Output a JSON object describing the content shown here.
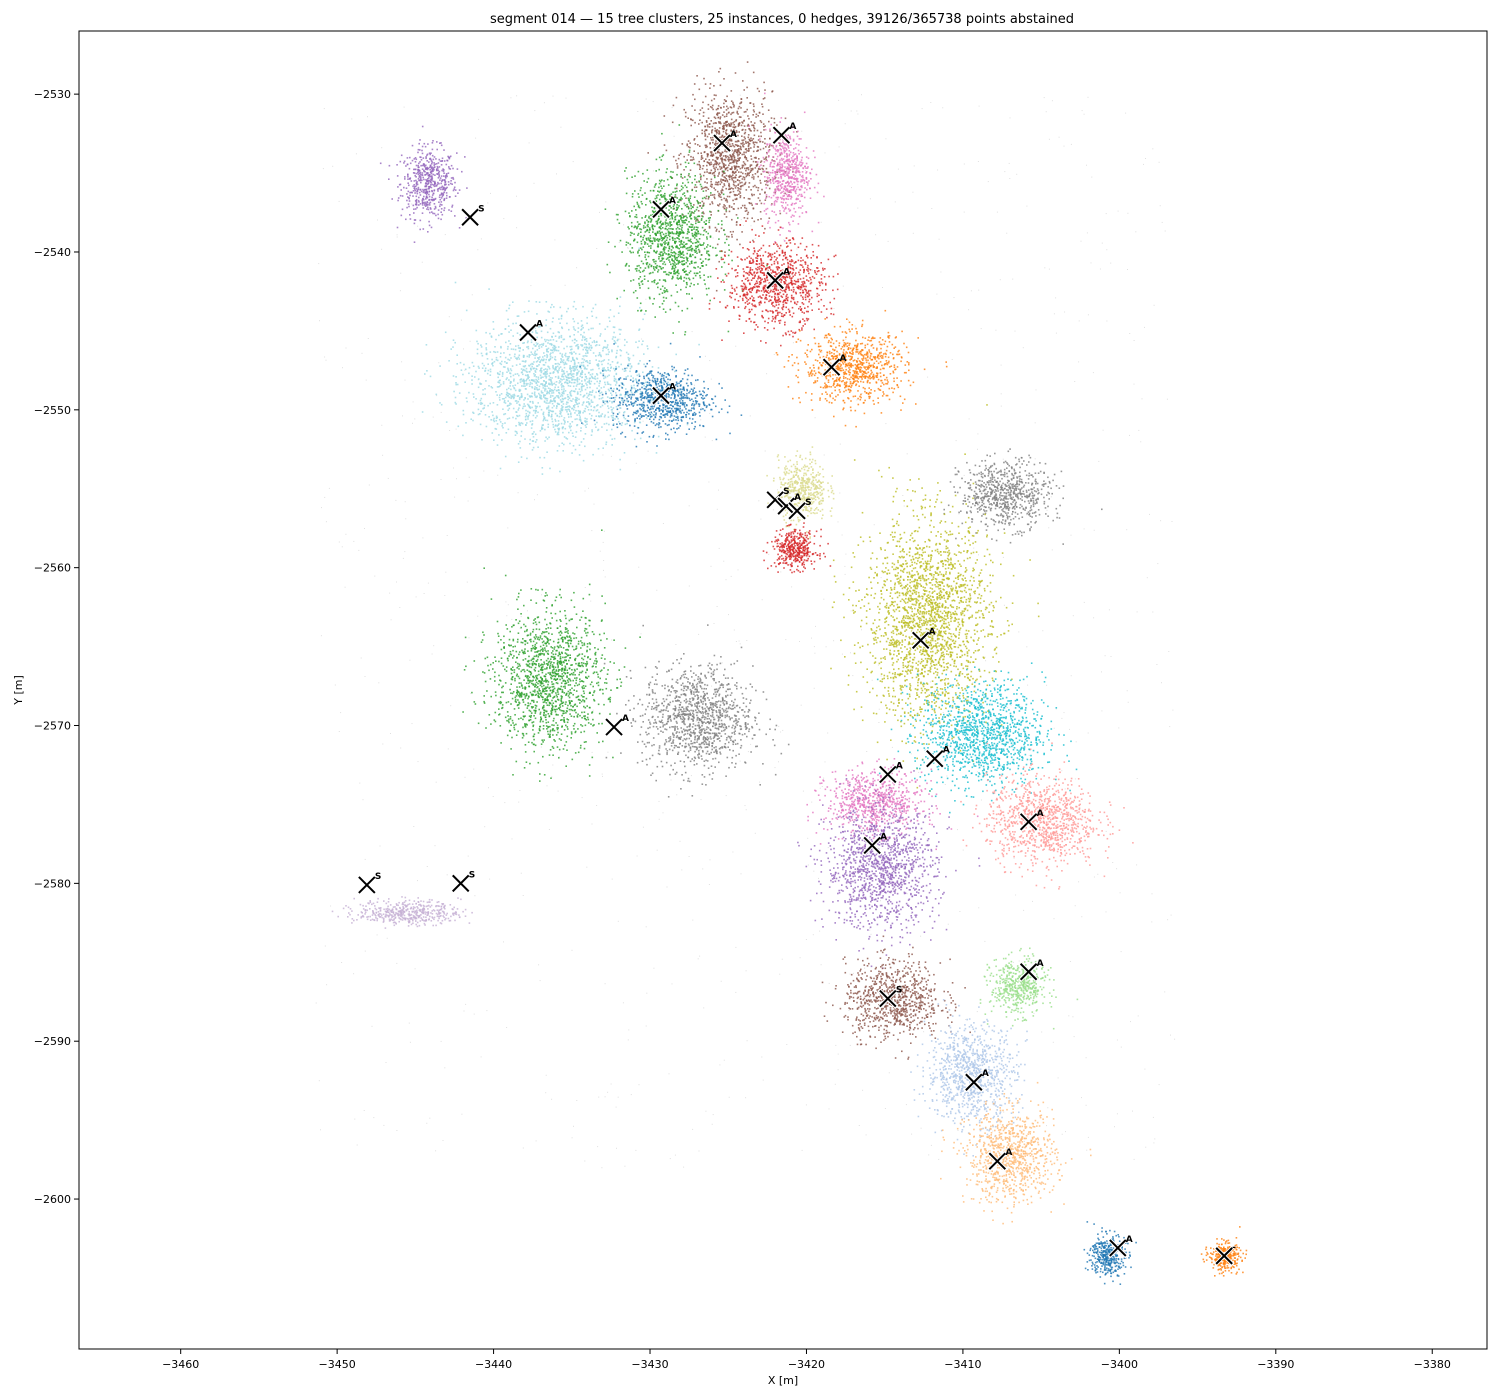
{
  "chart_data": {
    "type": "scatter",
    "title": "segment 014 — 15 tree clusters, 25 instances, 0 hedges, 39126/365738 points abstained",
    "xlabel": "X [m]",
    "ylabel": "Y [m]",
    "xlim": [
      -3466.5,
      -3376.5
    ],
    "ylim": [
      -2609.5,
      -2526.0
    ],
    "grid": false,
    "x_ticks": [
      -3460,
      -3450,
      -3440,
      -3430,
      -3420,
      -3410,
      -3400,
      -3390,
      -3380
    ],
    "y_ticks": [
      -2530,
      -2540,
      -2550,
      -2560,
      -2570,
      -2580,
      -2590,
      -2600
    ],
    "clusters": [
      {
        "color": "#9467bd",
        "cx": -3444.2,
        "cy": -2535.6,
        "rx": 1.6,
        "ry": 2.0
      },
      {
        "color": "#8c564b",
        "cx": -3425.0,
        "cy": -2534.0,
        "rx": 2.5,
        "ry": 3.8
      },
      {
        "color": "#e377c2",
        "cx": -3421.3,
        "cy": -2535.0,
        "rx": 1.3,
        "ry": 2.6
      },
      {
        "color": "#2ca02c",
        "cx": -3428.7,
        "cy": -2539.0,
        "rx": 2.6,
        "ry": 3.6
      },
      {
        "color": "#d62728",
        "cx": -3422.0,
        "cy": -2542.0,
        "rx": 2.8,
        "ry": 2.4
      },
      {
        "color": "#ff7f0e",
        "cx": -3417.0,
        "cy": -2547.3,
        "rx": 3.0,
        "ry": 2.0
      },
      {
        "color": "#9edae5",
        "cx": -3436.0,
        "cy": -2548.2,
        "rx": 5.0,
        "ry": 3.6
      },
      {
        "color": "#1f77b4",
        "cx": -3429.3,
        "cy": -2549.3,
        "rx": 2.8,
        "ry": 1.8
      },
      {
        "color": "#dbdb8d",
        "cx": -3420.3,
        "cy": -2555.0,
        "rx": 1.4,
        "ry": 1.8
      },
      {
        "color": "#d62728",
        "cx": -3420.8,
        "cy": -2558.8,
        "rx": 1.3,
        "ry": 1.1
      },
      {
        "color": "#7f7f7f",
        "cx": -3407.3,
        "cy": -2555.3,
        "rx": 2.6,
        "ry": 1.9
      },
      {
        "color": "#bcbd22",
        "cx": -3412.3,
        "cy": -2563.3,
        "rx": 3.6,
        "ry": 5.8
      },
      {
        "color": "#17becf",
        "cx": -3408.8,
        "cy": -2570.5,
        "rx": 3.6,
        "ry": 3.0
      },
      {
        "color": "#ff9896",
        "cx": -3405.0,
        "cy": -2576.0,
        "rx": 3.2,
        "ry": 2.5
      },
      {
        "color": "#e377c2",
        "cx": -3415.7,
        "cy": -2574.8,
        "rx": 2.8,
        "ry": 1.8
      },
      {
        "color": "#9467bd",
        "cx": -3415.3,
        "cy": -2579.0,
        "rx": 3.2,
        "ry": 3.4
      },
      {
        "color": "#2ca02c",
        "cx": -3436.5,
        "cy": -2567.0,
        "rx": 3.2,
        "ry": 4.0
      },
      {
        "color": "#7f7f7f",
        "cx": -3427.0,
        "cy": -2569.5,
        "rx": 3.2,
        "ry": 3.0
      },
      {
        "color": "#8c564b",
        "cx": -3414.5,
        "cy": -2587.3,
        "rx": 2.8,
        "ry": 2.2
      },
      {
        "color": "#98df8a",
        "cx": -3406.5,
        "cy": -2586.5,
        "rx": 1.6,
        "ry": 1.6
      },
      {
        "color": "#aec7e8",
        "cx": -3409.5,
        "cy": -2592.0,
        "rx": 2.6,
        "ry": 2.8
      },
      {
        "color": "#ffbb78",
        "cx": -3407.0,
        "cy": -2597.3,
        "rx": 2.6,
        "ry": 2.6
      },
      {
        "color": "#1f77b4",
        "cx": -3400.8,
        "cy": -2603.5,
        "rx": 1.0,
        "ry": 1.2
      },
      {
        "color": "#ff7f0e",
        "cx": -3393.3,
        "cy": -2603.6,
        "rx": 0.9,
        "ry": 0.8
      },
      {
        "color": "#c5b0d5",
        "cx": -3445.5,
        "cy": -2581.8,
        "rx": 3.0,
        "ry": 0.7
      }
    ],
    "markers": [
      {
        "x": -3441.5,
        "y": -2537.8,
        "label": "S"
      },
      {
        "x": -3425.4,
        "y": -2533.1,
        "label": "A"
      },
      {
        "x": -3421.6,
        "y": -2532.6,
        "label": "A"
      },
      {
        "x": -3429.3,
        "y": -2537.3,
        "label": "A"
      },
      {
        "x": -3422.0,
        "y": -2541.8,
        "label": "A"
      },
      {
        "x": -3437.8,
        "y": -2545.1,
        "label": "A"
      },
      {
        "x": -3418.4,
        "y": -2547.3,
        "label": "A"
      },
      {
        "x": -3429.3,
        "y": -2549.1,
        "label": "A"
      },
      {
        "x": -3422.0,
        "y": -2555.7,
        "label": "S"
      },
      {
        "x": -3421.3,
        "y": -2556.1,
        "label": "A"
      },
      {
        "x": -3420.6,
        "y": -2556.4,
        "label": "S"
      },
      {
        "x": -3412.7,
        "y": -2564.6,
        "label": "A"
      },
      {
        "x": -3432.3,
        "y": -2570.1,
        "label": "A"
      },
      {
        "x": -3411.8,
        "y": -2572.1,
        "label": "A"
      },
      {
        "x": -3414.8,
        "y": -2573.1,
        "label": "A"
      },
      {
        "x": -3405.8,
        "y": -2576.1,
        "label": "A"
      },
      {
        "x": -3415.8,
        "y": -2577.6,
        "label": "A"
      },
      {
        "x": -3448.1,
        "y": -2580.1,
        "label": "S"
      },
      {
        "x": -3442.1,
        "y": -2580.0,
        "label": "S"
      },
      {
        "x": -3405.8,
        "y": -2585.6,
        "label": "A"
      },
      {
        "x": -3414.8,
        "y": -2587.3,
        "label": "S"
      },
      {
        "x": -3409.3,
        "y": -2592.6,
        "label": "A"
      },
      {
        "x": -3407.8,
        "y": -2597.6,
        "label": "A"
      },
      {
        "x": -3400.1,
        "y": -2603.1,
        "label": "A"
      },
      {
        "x": -3393.3,
        "y": -2603.6,
        "label": "-"
      }
    ]
  }
}
